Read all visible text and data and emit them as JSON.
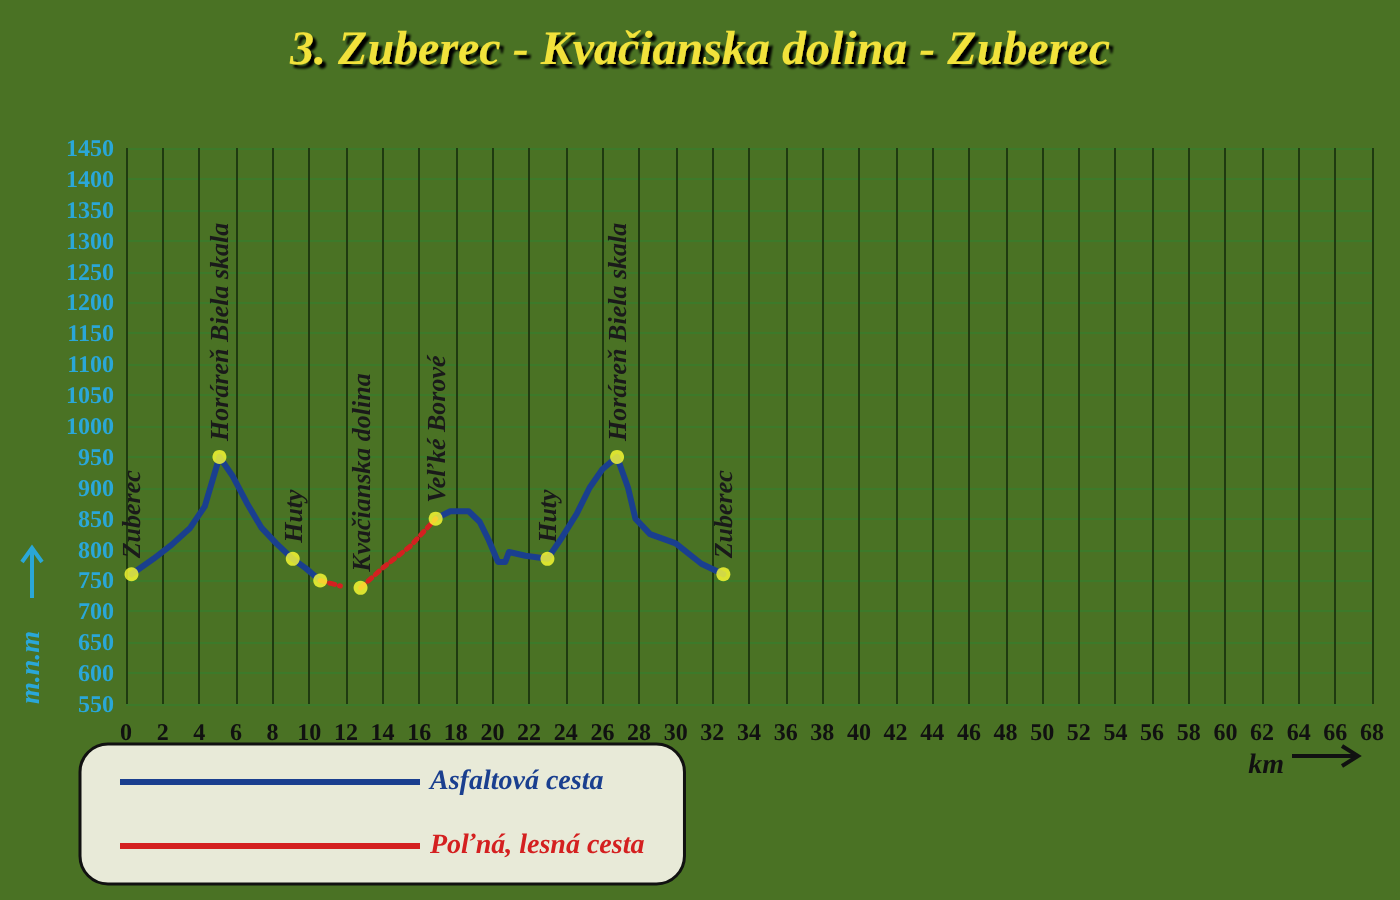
{
  "chart_data": {
    "type": "line",
    "title": "3. Zuberec - Kvačianska dolina - Zuberec",
    "xlabel": "km",
    "ylabel": "m.n.m",
    "xlim": [
      0,
      68
    ],
    "xticks": [
      0,
      2,
      4,
      6,
      8,
      10,
      12,
      14,
      16,
      18,
      20,
      22,
      24,
      26,
      28,
      30,
      32,
      34,
      36,
      38,
      40,
      42,
      44,
      46,
      48,
      50,
      52,
      54,
      56,
      58,
      60,
      62,
      64,
      66,
      68
    ],
    "ylim": [
      550,
      1450
    ],
    "yticks": [
      550,
      600,
      650,
      700,
      750,
      800,
      850,
      900,
      950,
      1000,
      1050,
      1100,
      1150,
      1200,
      1250,
      1300,
      1350,
      1400,
      1450
    ],
    "grid": true,
    "legend": "bottom left",
    "marker": "none",
    "series": [
      {
        "name": "Asfaltová cesta",
        "color": "#1a3f8f",
        "line_style": "solid",
        "x": [
          0.3,
          1.5,
          2.5,
          3.5,
          4.3,
          5.1,
          5.8,
          6.6,
          7.4,
          8.2,
          9.1,
          9.8,
          10.6,
          11.0,
          16.9,
          17.7,
          18.7,
          19.3,
          19.8,
          20.3,
          20.7,
          20.9,
          21.8,
          23.0,
          23.8,
          24.6,
          25.3,
          26.0,
          26.8,
          27.4,
          27.8,
          28.6,
          30.0,
          31.4,
          32.6
        ],
        "values": [
          760,
          785,
          808,
          835,
          870,
          950,
          920,
          875,
          835,
          810,
          785,
          770,
          750,
          null,
          850,
          862,
          862,
          845,
          815,
          780,
          780,
          796,
          790,
          785,
          820,
          858,
          900,
          930,
          950,
          900,
          850,
          825,
          810,
          777,
          760
        ]
      },
      {
        "name": "Poľná, lesná cesta",
        "color": "#d42020",
        "line_style": "dotted",
        "x": [
          10.6,
          11.7,
          12.2,
          12.8,
          14.0,
          15.5,
          16.9
        ],
        "values": [
          750,
          741,
          null,
          738,
          770,
          805,
          850
        ]
      },
      {
        "type": "scatter",
        "color": "#ffff33",
        "marker": "circle",
        "x": [
          0.3,
          5.1,
          9.1,
          10.6,
          12.8,
          16.9,
          23.0,
          26.8,
          32.6
        ],
        "values": [
          760,
          950,
          785,
          750,
          738,
          850,
          785,
          950,
          760
        ]
      }
    ],
    "annotations": [
      {
        "text": "Zuberec",
        "x": 0.3,
        "y": 760
      },
      {
        "text": "Horáreň Biela skala",
        "x": 5.1,
        "y": 950
      },
      {
        "text": "Huty",
        "x": 9.1,
        "y": 785
      },
      {
        "text": "Kvačianska dolina",
        "x": 12.8,
        "y": 738
      },
      {
        "text": "Veľké Borové",
        "x": 16.9,
        "y": 850
      },
      {
        "text": "Huty",
        "x": 23.0,
        "y": 785
      },
      {
        "text": "Horáreň Biela skala",
        "x": 26.8,
        "y": 950
      },
      {
        "text": "Zuberec",
        "x": 32.6,
        "y": 760
      }
    ]
  }
}
